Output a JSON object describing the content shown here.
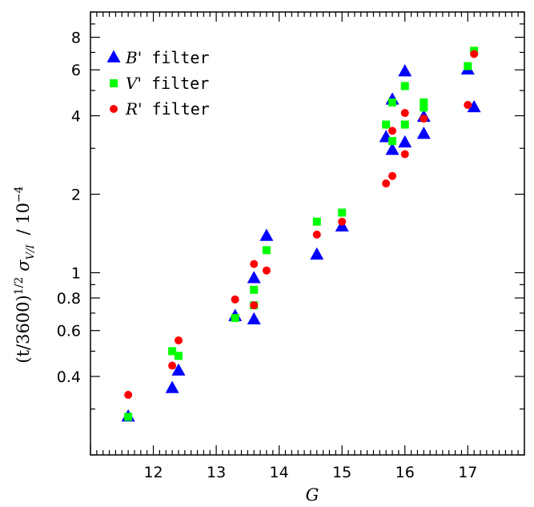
{
  "chart_data": {
    "type": "scatter",
    "xlabel": "G",
    "ylabel": "(t/3600)^{1/2} σ_{V/I} / 10^{-4}",
    "ylabel_parts": {
      "pre": "(t/3600)",
      "pre_sup": "1/2",
      "sigma": "σ",
      "sigma_sub": "V/I",
      "post": "/ 10",
      "post_sup": "−4"
    },
    "xlim": [
      11.0,
      17.9
    ],
    "ylim": [
      0.2,
      10.0
    ],
    "yscale": "log",
    "x_ticks": [
      12,
      13,
      14,
      15,
      16,
      17
    ],
    "y_ticks": [
      0.4,
      0.6,
      0.8,
      1,
      2,
      4,
      6,
      8
    ],
    "y_tick_labels": [
      "0.4",
      "0.6",
      "0.8",
      "1",
      "2",
      "4",
      "6",
      "8"
    ],
    "legend_position": "top-left",
    "grid": false,
    "series": [
      {
        "name": "B' filter",
        "name_letter": "B'",
        "name_suffix": " filter",
        "marker": "triangle",
        "color": "#0000ff",
        "points": [
          [
            11.6,
            0.28
          ],
          [
            12.3,
            0.36
          ],
          [
            12.4,
            0.42
          ],
          [
            13.3,
            0.68
          ],
          [
            13.6,
            0.66
          ],
          [
            13.6,
            0.95
          ],
          [
            13.8,
            1.38
          ],
          [
            14.6,
            1.17
          ],
          [
            15.0,
            1.5
          ],
          [
            15.7,
            3.3
          ],
          [
            15.8,
            2.95
          ],
          [
            15.8,
            4.6
          ],
          [
            16.0,
            3.15
          ],
          [
            16.0,
            5.9
          ],
          [
            16.3,
            3.4
          ],
          [
            16.3,
            3.95
          ],
          [
            17.0,
            6.0
          ],
          [
            17.1,
            4.3
          ]
        ]
      },
      {
        "name": "V' filter",
        "name_letter": "V'",
        "name_suffix": " filter",
        "marker": "square",
        "color": "#00ff00",
        "points": [
          [
            11.6,
            0.28
          ],
          [
            12.3,
            0.5
          ],
          [
            12.4,
            0.48
          ],
          [
            13.3,
            0.67
          ],
          [
            13.6,
            0.75
          ],
          [
            13.6,
            0.86
          ],
          [
            13.8,
            1.22
          ],
          [
            14.6,
            1.57
          ],
          [
            15.0,
            1.7
          ],
          [
            15.7,
            3.7
          ],
          [
            15.8,
            3.2
          ],
          [
            15.8,
            4.5
          ],
          [
            16.0,
            3.7
          ],
          [
            16.0,
            5.2
          ],
          [
            16.3,
            4.3
          ],
          [
            16.3,
            4.5
          ],
          [
            17.0,
            6.2
          ],
          [
            17.1,
            7.1
          ]
        ]
      },
      {
        "name": "R' filter",
        "name_letter": "R'",
        "name_suffix": " filter",
        "marker": "circle",
        "color": "#ff0000",
        "points": [
          [
            11.6,
            0.34
          ],
          [
            12.3,
            0.44
          ],
          [
            12.4,
            0.55
          ],
          [
            13.3,
            0.79
          ],
          [
            13.6,
            0.75
          ],
          [
            13.6,
            1.08
          ],
          [
            13.8,
            1.02
          ],
          [
            14.6,
            1.4
          ],
          [
            15.0,
            1.57
          ],
          [
            15.7,
            2.2
          ],
          [
            15.8,
            2.35
          ],
          [
            15.8,
            3.5
          ],
          [
            16.0,
            2.85
          ],
          [
            16.0,
            4.1
          ],
          [
            16.3,
            3.9
          ],
          [
            17.0,
            4.4
          ],
          [
            17.1,
            6.9
          ]
        ]
      }
    ]
  }
}
